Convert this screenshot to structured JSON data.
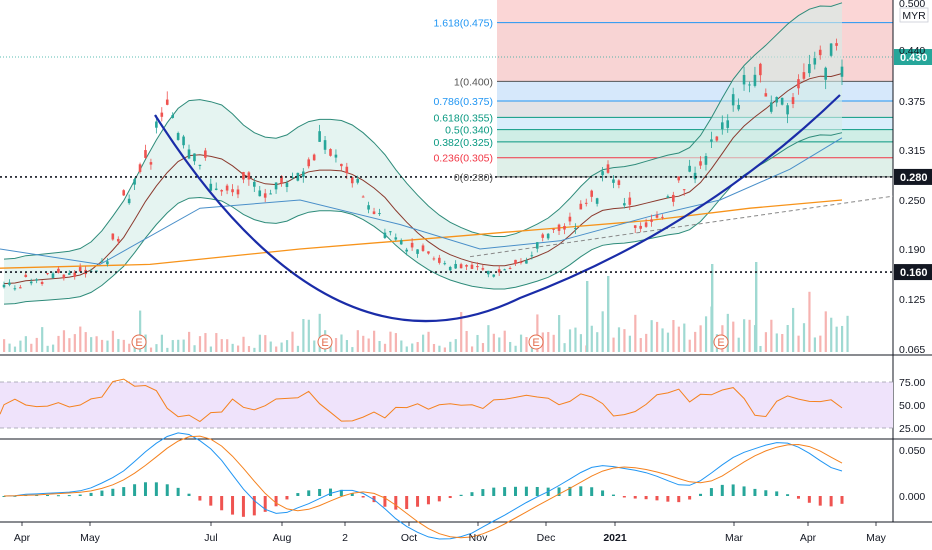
{
  "chart_data": {
    "type": "candlestick",
    "currency": "MYR",
    "last_price": "0.430",
    "price_axis_labels": [
      "0.500",
      "0.440",
      "0.375",
      "0.315",
      "0.250",
      "0.190",
      "0.125",
      "0.065"
    ],
    "time_axis_labels": [
      "Apr",
      "May",
      "Jul",
      "Aug",
      "2",
      "Oct",
      "Nov",
      "Dec",
      "2021",
      "Mar",
      "Apr",
      "May"
    ],
    "support_levels": [
      {
        "value": "0.280",
        "line": "dotted"
      },
      {
        "value": "0.160",
        "line": "dotted"
      }
    ],
    "fibonacci": [
      {
        "label": "1.618(0.475)",
        "value": 0.475,
        "color": "#2196f3"
      },
      {
        "label": "1(0.400)",
        "value": 0.4,
        "color": "#555555"
      },
      {
        "label": "0.786(0.375)",
        "value": 0.375,
        "color": "#2196f3"
      },
      {
        "label": "0.618(0.355)",
        "value": 0.355,
        "color": "#089981"
      },
      {
        "label": "0.5(0.340)",
        "value": 0.34,
        "color": "#089981"
      },
      {
        "label": "0.382(0.325)",
        "value": 0.325,
        "color": "#089981"
      },
      {
        "label": "0.236(0.305)",
        "value": 0.305,
        "color": "#f23645"
      },
      {
        "label": "0(0.280)",
        "value": 0.28,
        "color": "#555555"
      }
    ],
    "earnings_markers": [
      "E",
      "E",
      "E",
      "E"
    ],
    "rsi_axis_labels": [
      "75.00",
      "50.00",
      "25.00"
    ],
    "macd_axis_labels": [
      "0.050",
      "0.000"
    ],
    "close_series": [
      0.145,
      0.14,
      0.15,
      0.148,
      0.16,
      0.155,
      0.158,
      0.16,
      0.165,
      0.17,
      0.2,
      0.25,
      0.28,
      0.3,
      0.35,
      0.36,
      0.34,
      0.32,
      0.3,
      0.27,
      0.26,
      0.26,
      0.27,
      0.27,
      0.26,
      0.27,
      0.28,
      0.29,
      0.3,
      0.33,
      0.31,
      0.29,
      0.27,
      0.25,
      0.23,
      0.21,
      0.2,
      0.19,
      0.185,
      0.18,
      0.175,
      0.17,
      0.168,
      0.165,
      0.162,
      0.16,
      0.165,
      0.17,
      0.18,
      0.2,
      0.21,
      0.215,
      0.22,
      0.24,
      0.26,
      0.28,
      0.27,
      0.24,
      0.22,
      0.22,
      0.235,
      0.25,
      0.27,
      0.29,
      0.3,
      0.32,
      0.35,
      0.38,
      0.4,
      0.41,
      0.38,
      0.37,
      0.38,
      0.4,
      0.42,
      0.43,
      0.44,
      0.43
    ]
  },
  "colors": {
    "up": "#26a69a",
    "down": "#ef5350",
    "bollinger": "#2e8b7a",
    "cup_curve": "#1a2ca8",
    "ma_long": "#f7931a",
    "rsi_line": "#f5821f",
    "macd_line": "#2196f3",
    "signal_line": "#f5821f",
    "rsi_band": "#efe3fb"
  }
}
